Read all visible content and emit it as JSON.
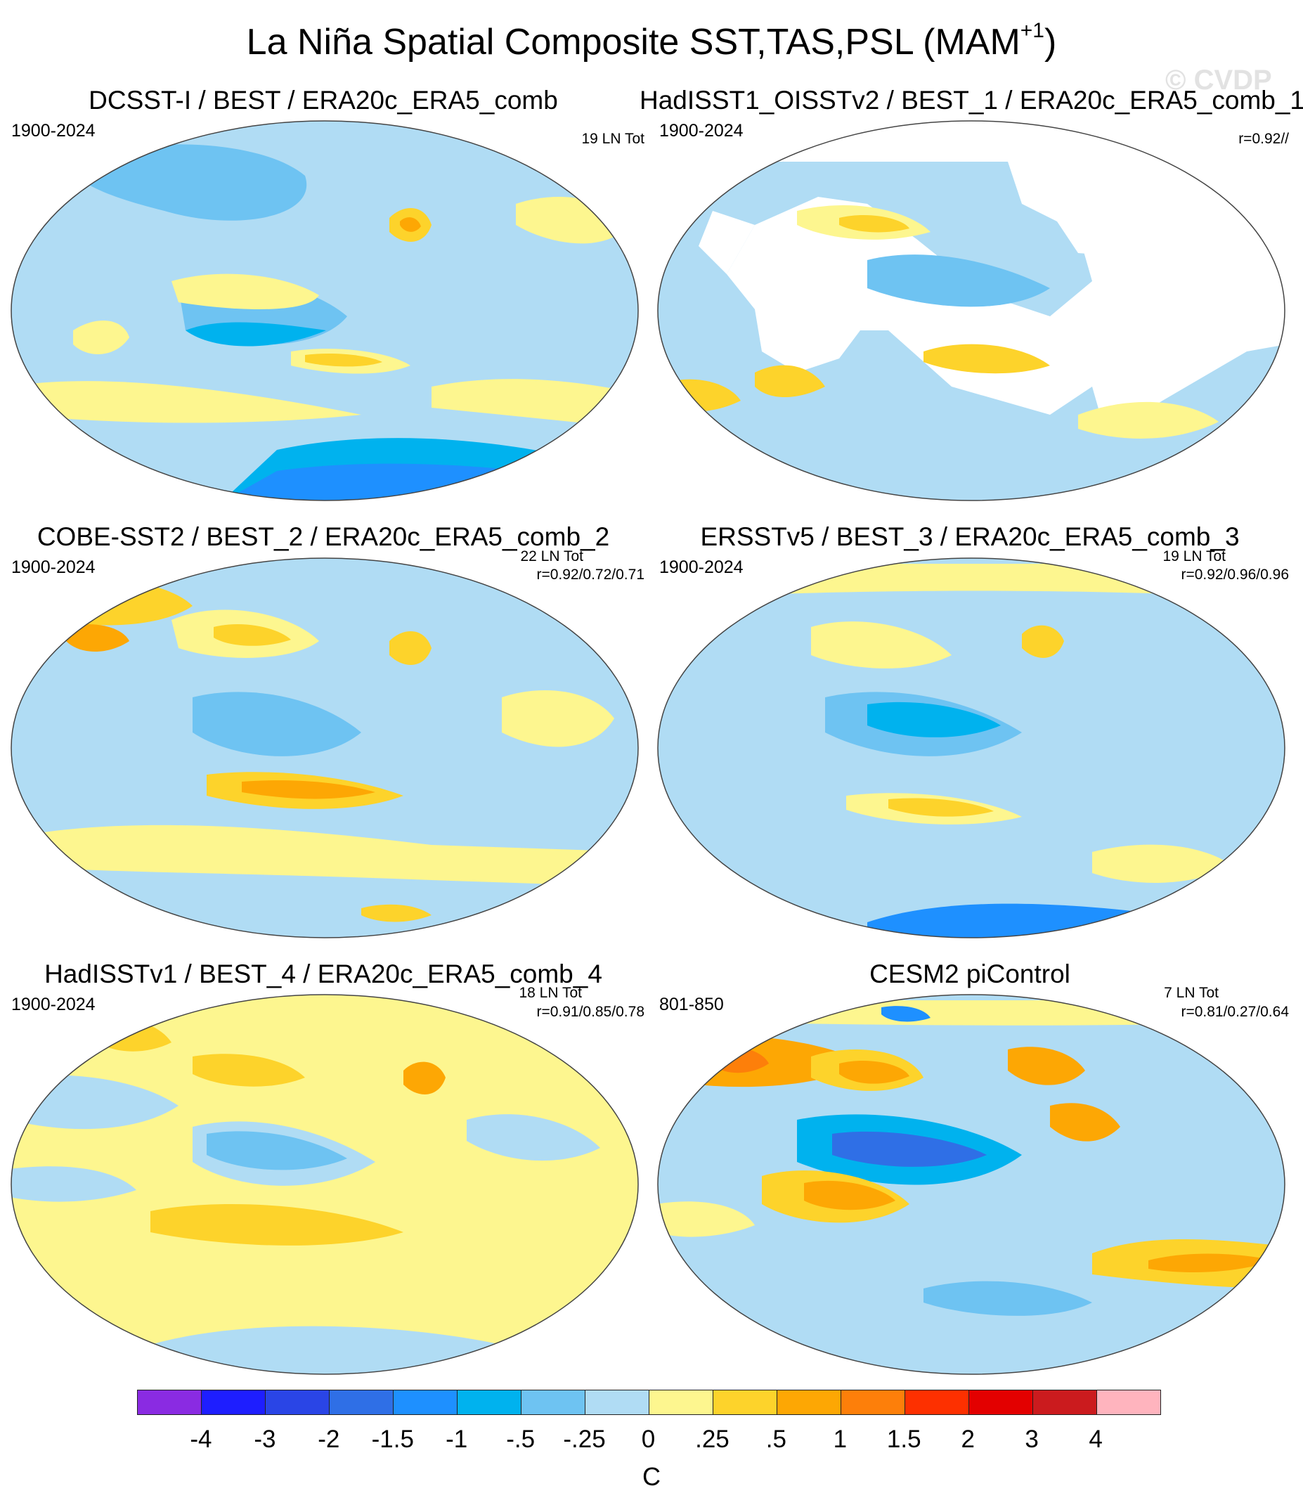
{
  "title": {
    "main": "La Niña Spatial Composite SST,TAS,PSL (MAM",
    "superscript": "+1",
    "close": ")"
  },
  "watermark": "© CVDP",
  "panels": [
    {
      "title": "DCSST-I / BEST / ERA20c_ERA5_comb",
      "period": "1900-2024",
      "count": "19 LN Tot",
      "r": ""
    },
    {
      "title": "HadISST1_OISSTv2 / BEST_1 / ERA20c_ERA5_comb_1",
      "period": "1900-2024",
      "count": "",
      "r": "r=0.92//"
    },
    {
      "title": "COBE-SST2 / BEST_2 / ERA20c_ERA5_comb_2",
      "period": "1900-2024",
      "count": "22 LN Tot",
      "r": "r=0.92/0.72/0.71"
    },
    {
      "title": "ERSSTv5 / BEST_3 / ERA20c_ERA5_comb_3",
      "period": "1900-2024",
      "count": "19 LN Tot",
      "r": "r=0.92/0.96/0.96"
    },
    {
      "title": "HadISSTv1 / BEST_4 / ERA20c_ERA5_comb_4",
      "period": "1900-2024",
      "count": "18 LN Tot",
      "r": "r=0.91/0.85/0.78"
    },
    {
      "title": "CESM2 piControl",
      "period": "801-850",
      "count": "7 LN Tot",
      "r": "r=0.81/0.27/0.64"
    }
  ],
  "colorbar": {
    "colors": [
      "#8a2be2",
      "#1e1eff",
      "#2a45e6",
      "#2f6fe6",
      "#1e90ff",
      "#00b2ee",
      "#6ec3f2",
      "#b0dcf4",
      "#fdf68f",
      "#fdd32b",
      "#fda704",
      "#fd7f0a",
      "#fd3000",
      "#e30000",
      "#cb1b1e",
      "#ffb4be"
    ],
    "ticks": [
      "-4",
      "-3",
      "-2",
      "-1.5",
      "-1",
      "-.5",
      "-.25",
      "0",
      ".25",
      ".5",
      "1",
      "1.5",
      "2",
      "3",
      "4"
    ],
    "units": "C"
  }
}
